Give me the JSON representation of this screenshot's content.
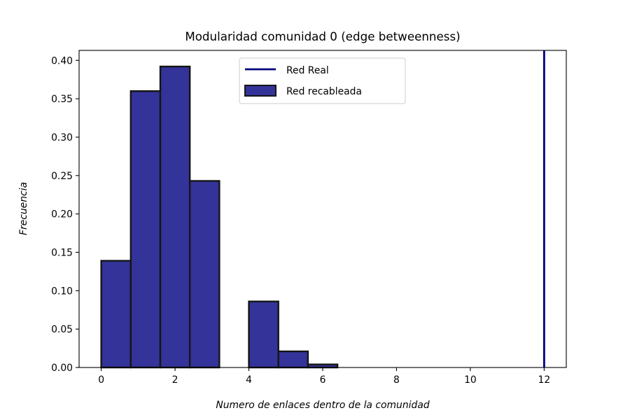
{
  "chart_data": {
    "type": "histogram",
    "title": "Modularidad comunidad 0 (edge betweenness)",
    "xlabel": "Numero de enlaces dentro de la comunidad",
    "ylabel": "Frecuencia",
    "xlim": [
      -0.6,
      12.6
    ],
    "ylim": [
      0,
      0.413
    ],
    "xticks": [
      0,
      2,
      4,
      6,
      8,
      10,
      12
    ],
    "yticks": [
      0.0,
      0.05,
      0.1,
      0.15,
      0.2,
      0.25,
      0.3,
      0.35,
      0.4
    ],
    "bins": [
      {
        "x0": 0.0,
        "x1": 0.8,
        "value": 0.139
      },
      {
        "x0": 0.8,
        "x1": 1.6,
        "value": 0.36
      },
      {
        "x0": 1.6,
        "x1": 2.4,
        "value": 0.392
      },
      {
        "x0": 2.4,
        "x1": 3.2,
        "value": 0.243
      },
      {
        "x0": 3.2,
        "x1": 4.0,
        "value": 0.0
      },
      {
        "x0": 4.0,
        "x1": 4.8,
        "value": 0.086
      },
      {
        "x0": 4.8,
        "x1": 5.6,
        "value": 0.021
      },
      {
        "x0": 5.6,
        "x1": 6.4,
        "value": 0.004
      },
      {
        "x0": 6.4,
        "x1": 7.2,
        "value": 0.0
      },
      {
        "x0": 7.2,
        "x1": 8.0,
        "value": 0.0
      }
    ],
    "vline": {
      "name": "Red Real",
      "x": 12,
      "color": "#00007f"
    },
    "bar_series_name": "Red recableada",
    "bar_color": "#333399",
    "bar_edge_color": "#151515",
    "legend_position": "upper-center"
  }
}
